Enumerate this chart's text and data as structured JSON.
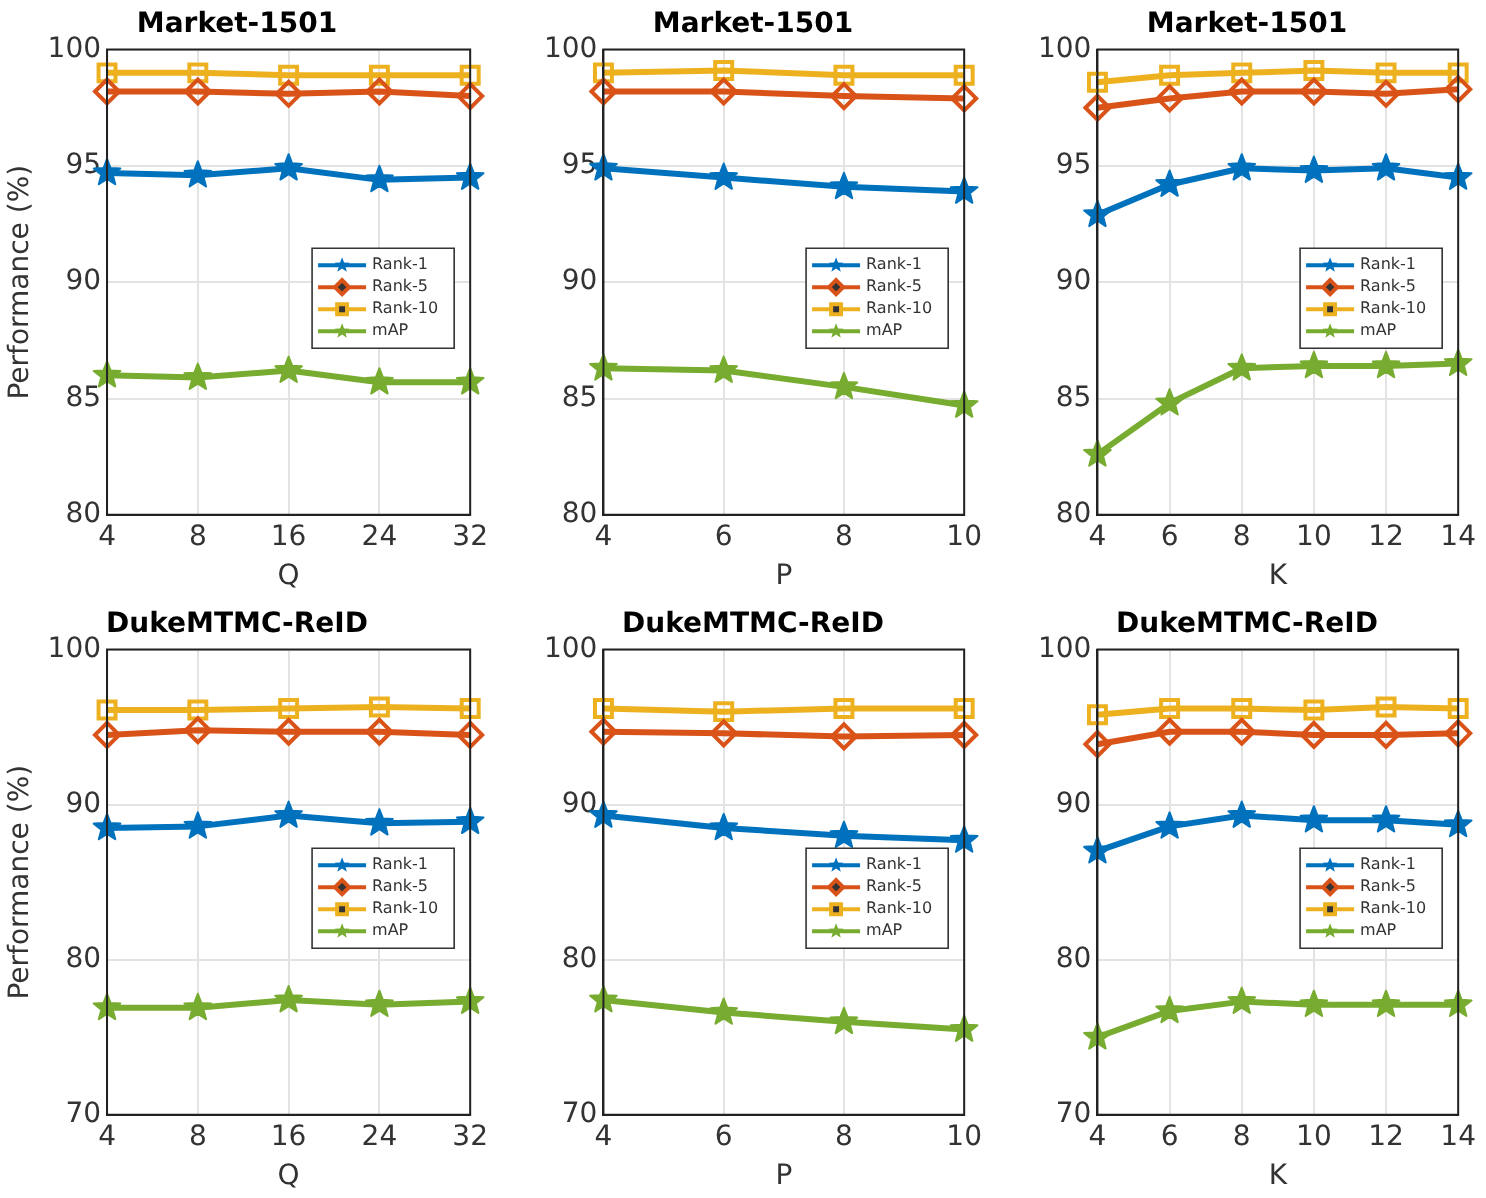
{
  "chart_data": [
    {
      "type": "line",
      "title": "Market-1501",
      "xlabel": "Q",
      "ylabel": "Performance (%)",
      "categories": [
        "4",
        "8",
        "16",
        "24",
        "32"
      ],
      "ylim": [
        80,
        100
      ],
      "yticks": [
        80,
        85,
        90,
        95,
        100
      ],
      "grid": true,
      "legend": "right",
      "line_style": "solid",
      "series": [
        {
          "name": "Rank-1",
          "color": "#0072bd",
          "marker": "star",
          "values": [
            94.7,
            94.6,
            94.9,
            94.4,
            94.5
          ]
        },
        {
          "name": "Rank-5",
          "color": "#d95319",
          "marker": "diamond",
          "values": [
            98.2,
            98.2,
            98.1,
            98.2,
            98.0
          ]
        },
        {
          "name": "Rank-10",
          "color": "#edb120",
          "marker": "square",
          "values": [
            99.0,
            99.0,
            98.9,
            98.9,
            98.9
          ]
        },
        {
          "name": "mAP",
          "color": "#77ac30",
          "marker": "star",
          "values": [
            86.0,
            85.9,
            86.2,
            85.7,
            85.7
          ]
        }
      ]
    },
    {
      "type": "line",
      "title": "Market-1501",
      "xlabel": "P",
      "x": [
        4,
        6,
        8,
        10
      ],
      "xlim": [
        4,
        10
      ],
      "xticks": [
        4,
        6,
        8,
        10
      ],
      "ylim": [
        80,
        100
      ],
      "yticks": [
        80,
        85,
        90,
        95,
        100
      ],
      "grid": true,
      "legend": "right",
      "line_style": "solid",
      "series": [
        {
          "name": "Rank-1",
          "color": "#0072bd",
          "marker": "star",
          "values": [
            94.9,
            94.5,
            94.1,
            93.9
          ]
        },
        {
          "name": "Rank-5",
          "color": "#d95319",
          "marker": "diamond",
          "values": [
            98.2,
            98.2,
            98.0,
            97.9
          ]
        },
        {
          "name": "Rank-10",
          "color": "#edb120",
          "marker": "square",
          "values": [
            99.0,
            99.1,
            98.9,
            98.9
          ]
        },
        {
          "name": "mAP",
          "color": "#77ac30",
          "marker": "star",
          "values": [
            86.3,
            86.2,
            85.5,
            84.7
          ]
        }
      ]
    },
    {
      "type": "line",
      "title": "Market-1501",
      "xlabel": "K",
      "x": [
        4,
        6,
        8,
        10,
        12,
        14
      ],
      "xlim": [
        4,
        14
      ],
      "xticks": [
        4,
        6,
        8,
        10,
        12,
        14
      ],
      "ylim": [
        80,
        100
      ],
      "yticks": [
        80,
        85,
        90,
        95,
        100
      ],
      "grid": true,
      "legend": "right",
      "line_style": "solid",
      "series": [
        {
          "name": "Rank-1",
          "color": "#0072bd",
          "marker": "star",
          "values": [
            92.9,
            94.2,
            94.9,
            94.8,
            94.9,
            94.5
          ]
        },
        {
          "name": "Rank-5",
          "color": "#d95319",
          "marker": "diamond",
          "values": [
            97.5,
            97.9,
            98.2,
            98.2,
            98.1,
            98.3
          ]
        },
        {
          "name": "Rank-10",
          "color": "#edb120",
          "marker": "square",
          "values": [
            98.6,
            98.9,
            99.0,
            99.1,
            99.0,
            99.0
          ]
        },
        {
          "name": "mAP",
          "color": "#77ac30",
          "marker": "star",
          "values": [
            82.6,
            84.8,
            86.3,
            86.4,
            86.4,
            86.5
          ]
        }
      ]
    },
    {
      "type": "line",
      "title": "DukeMTMC-ReID",
      "xlabel": "Q",
      "ylabel": "Performance (%)",
      "categories": [
        "4",
        "8",
        "16",
        "24",
        "32"
      ],
      "ylim": [
        70,
        100
      ],
      "yticks": [
        70,
        80,
        90,
        100
      ],
      "grid": true,
      "legend": "right",
      "line_style": "solid",
      "series": [
        {
          "name": "Rank-1",
          "color": "#0072bd",
          "marker": "star",
          "values": [
            88.5,
            88.6,
            89.3,
            88.8,
            88.9
          ]
        },
        {
          "name": "Rank-5",
          "color": "#d95319",
          "marker": "diamond",
          "values": [
            94.5,
            94.8,
            94.7,
            94.7,
            94.5
          ]
        },
        {
          "name": "Rank-10",
          "color": "#edb120",
          "marker": "square",
          "values": [
            96.1,
            96.1,
            96.2,
            96.3,
            96.2
          ]
        },
        {
          "name": "mAP",
          "color": "#77ac30",
          "marker": "star",
          "values": [
            76.9,
            76.9,
            77.4,
            77.1,
            77.3
          ]
        }
      ]
    },
    {
      "type": "line",
      "title": "DukeMTMC-ReID",
      "xlabel": "P",
      "x": [
        4,
        6,
        8,
        10
      ],
      "xlim": [
        4,
        10
      ],
      "xticks": [
        4,
        6,
        8,
        10
      ],
      "ylim": [
        70,
        100
      ],
      "yticks": [
        70,
        80,
        90,
        100
      ],
      "grid": true,
      "legend": "right",
      "line_style": "solid",
      "series": [
        {
          "name": "Rank-1",
          "color": "#0072bd",
          "marker": "star",
          "values": [
            89.3,
            88.5,
            88.0,
            87.7
          ]
        },
        {
          "name": "Rank-5",
          "color": "#d95319",
          "marker": "diamond",
          "values": [
            94.7,
            94.6,
            94.4,
            94.5
          ]
        },
        {
          "name": "Rank-10",
          "color": "#edb120",
          "marker": "square",
          "values": [
            96.2,
            96.0,
            96.2,
            96.2
          ]
        },
        {
          "name": "mAP",
          "color": "#77ac30",
          "marker": "star",
          "values": [
            77.4,
            76.6,
            76.0,
            75.5
          ]
        }
      ]
    },
    {
      "type": "line",
      "title": "DukeMTMC-ReID",
      "xlabel": "K",
      "x": [
        4,
        6,
        8,
        10,
        12,
        14
      ],
      "xlim": [
        4,
        14
      ],
      "xticks": [
        4,
        6,
        8,
        10,
        12,
        14
      ],
      "ylim": [
        70,
        100
      ],
      "yticks": [
        70,
        80,
        90,
        100
      ],
      "grid": true,
      "legend": "right",
      "line_style": "solid",
      "series": [
        {
          "name": "Rank-1",
          "color": "#0072bd",
          "marker": "star",
          "values": [
            87.0,
            88.6,
            89.3,
            89.0,
            89.0,
            88.7
          ]
        },
        {
          "name": "Rank-5",
          "color": "#d95319",
          "marker": "diamond",
          "values": [
            93.9,
            94.7,
            94.7,
            94.5,
            94.5,
            94.6
          ]
        },
        {
          "name": "Rank-10",
          "color": "#edb120",
          "marker": "square",
          "values": [
            95.8,
            96.2,
            96.2,
            96.1,
            96.3,
            96.2
          ]
        },
        {
          "name": "mAP",
          "color": "#77ac30",
          "marker": "star",
          "values": [
            75.0,
            76.7,
            77.3,
            77.1,
            77.1,
            77.1
          ]
        }
      ]
    }
  ]
}
